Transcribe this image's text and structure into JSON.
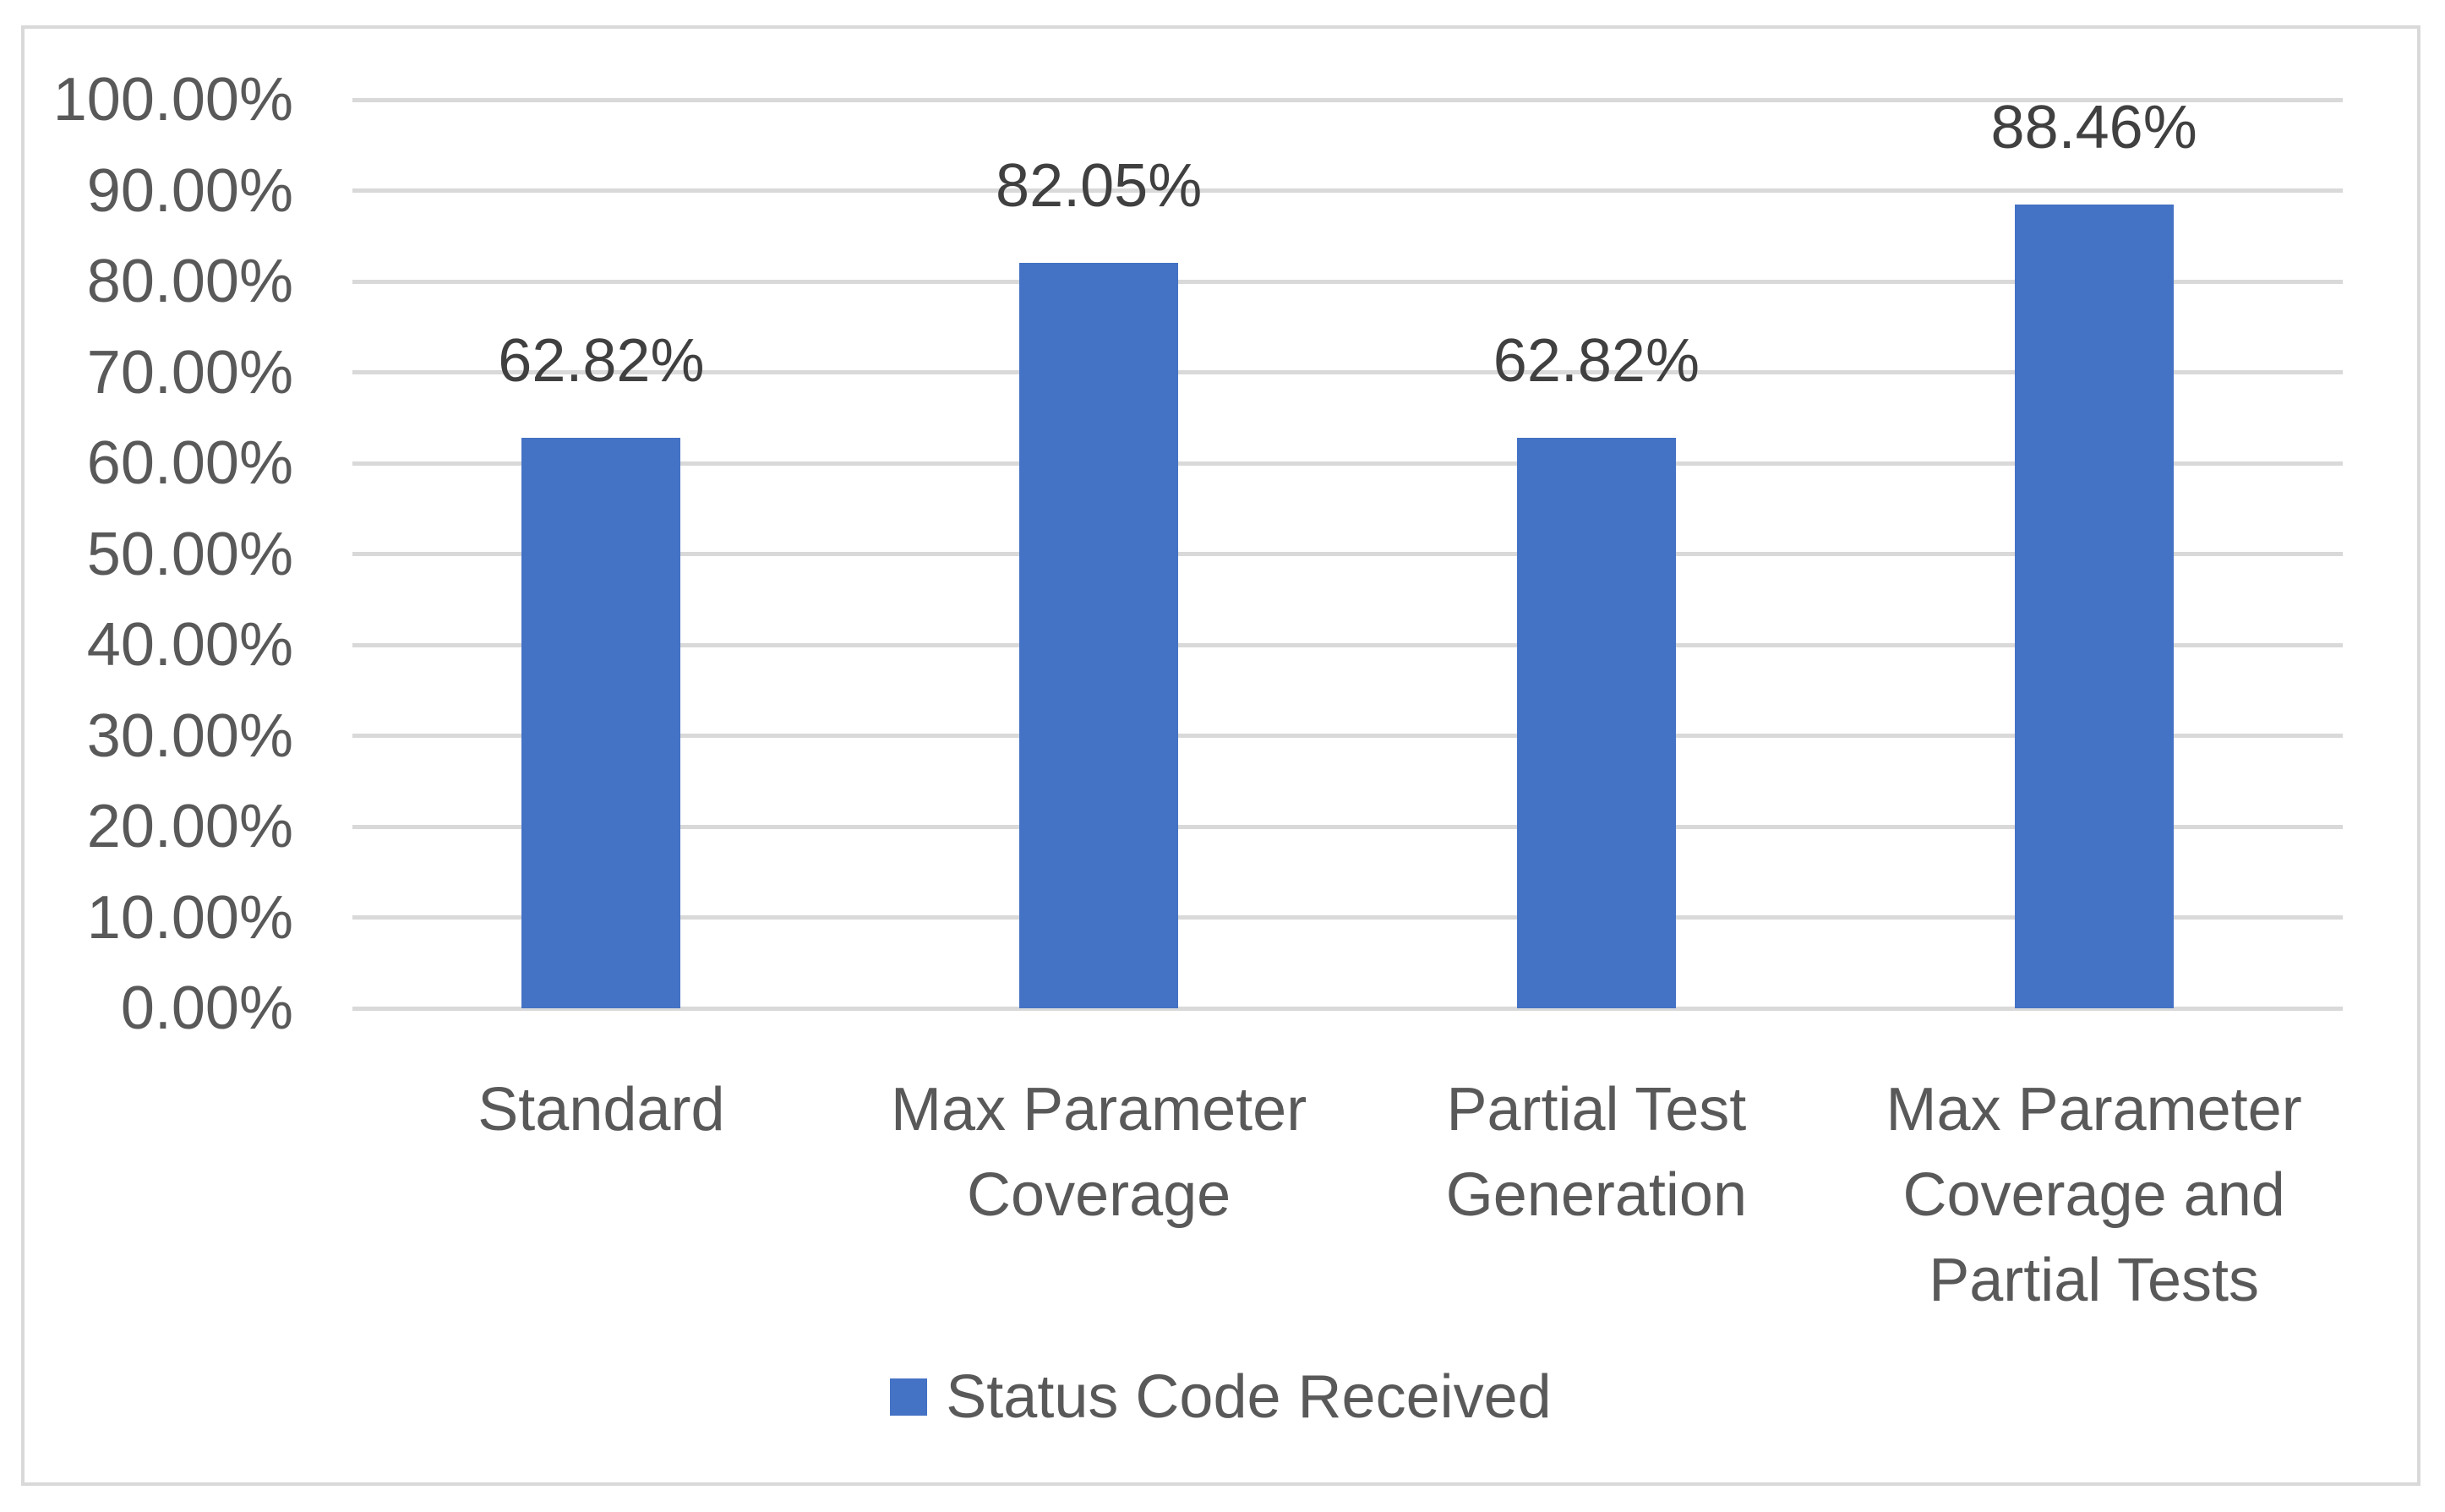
{
  "chart_data": {
    "type": "bar",
    "title": "",
    "categories": [
      "Standard",
      "Max Parameter Coverage",
      "Partial Test Generation",
      "Max Parameter Coverage and Partial Tests"
    ],
    "series": [
      {
        "name": "Status Code Received",
        "values": [
          62.82,
          82.05,
          62.82,
          88.46
        ],
        "data_labels": [
          "62.82%",
          "82.05%",
          "62.82%",
          "88.46%"
        ],
        "color": "#4472C4"
      }
    ],
    "ylim": [
      0,
      100
    ],
    "ytick_step": 10,
    "ytick_labels": [
      "0.00%",
      "10.00%",
      "20.00%",
      "30.00%",
      "40.00%",
      "50.00%",
      "60.00%",
      "70.00%",
      "80.00%",
      "90.00%",
      "100.00%"
    ],
    "grid": true,
    "legend_position": "bottom"
  },
  "legend": {
    "items": [
      {
        "label": "Status Code Received",
        "color": "#4472C4"
      }
    ]
  },
  "colors": {
    "background": "#FFFFFF",
    "frame_border": "#D9D9D9",
    "gridline": "#D9D9D9",
    "bar": "#4472C4",
    "axis_text": "#595959",
    "data_label_text": "#404040"
  }
}
